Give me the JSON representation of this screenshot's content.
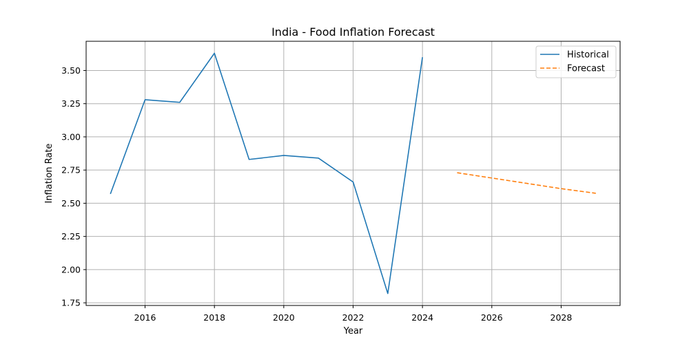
{
  "chart_data": {
    "type": "line",
    "title": "India - Food Inflation Forecast",
    "xlabel": "Year",
    "ylabel": "Inflation Rate",
    "xlim": [
      2014.3,
      2029.7
    ],
    "ylim": [
      1.73,
      3.72
    ],
    "xticks": [
      2016,
      2018,
      2020,
      2022,
      2024,
      2026,
      2028
    ],
    "yticks": [
      "1.75",
      "2.00",
      "2.25",
      "2.50",
      "2.75",
      "3.00",
      "3.25",
      "3.50"
    ],
    "grid": true,
    "legend_position": "upper right",
    "series": [
      {
        "name": "Historical",
        "color": "#1f77b4",
        "style": "solid",
        "x": [
          2015,
          2016,
          2017,
          2018,
          2019,
          2020,
          2021,
          2022,
          2023,
          2024
        ],
        "y": [
          2.57,
          3.28,
          3.26,
          3.63,
          2.83,
          2.86,
          2.84,
          2.66,
          1.82,
          3.6
        ]
      },
      {
        "name": "Forecast",
        "color": "#ff7f0e",
        "style": "dashed",
        "x": [
          2025,
          2026,
          2027,
          2028,
          2029
        ],
        "y": [
          2.73,
          2.69,
          2.65,
          2.61,
          2.575
        ]
      }
    ]
  }
}
